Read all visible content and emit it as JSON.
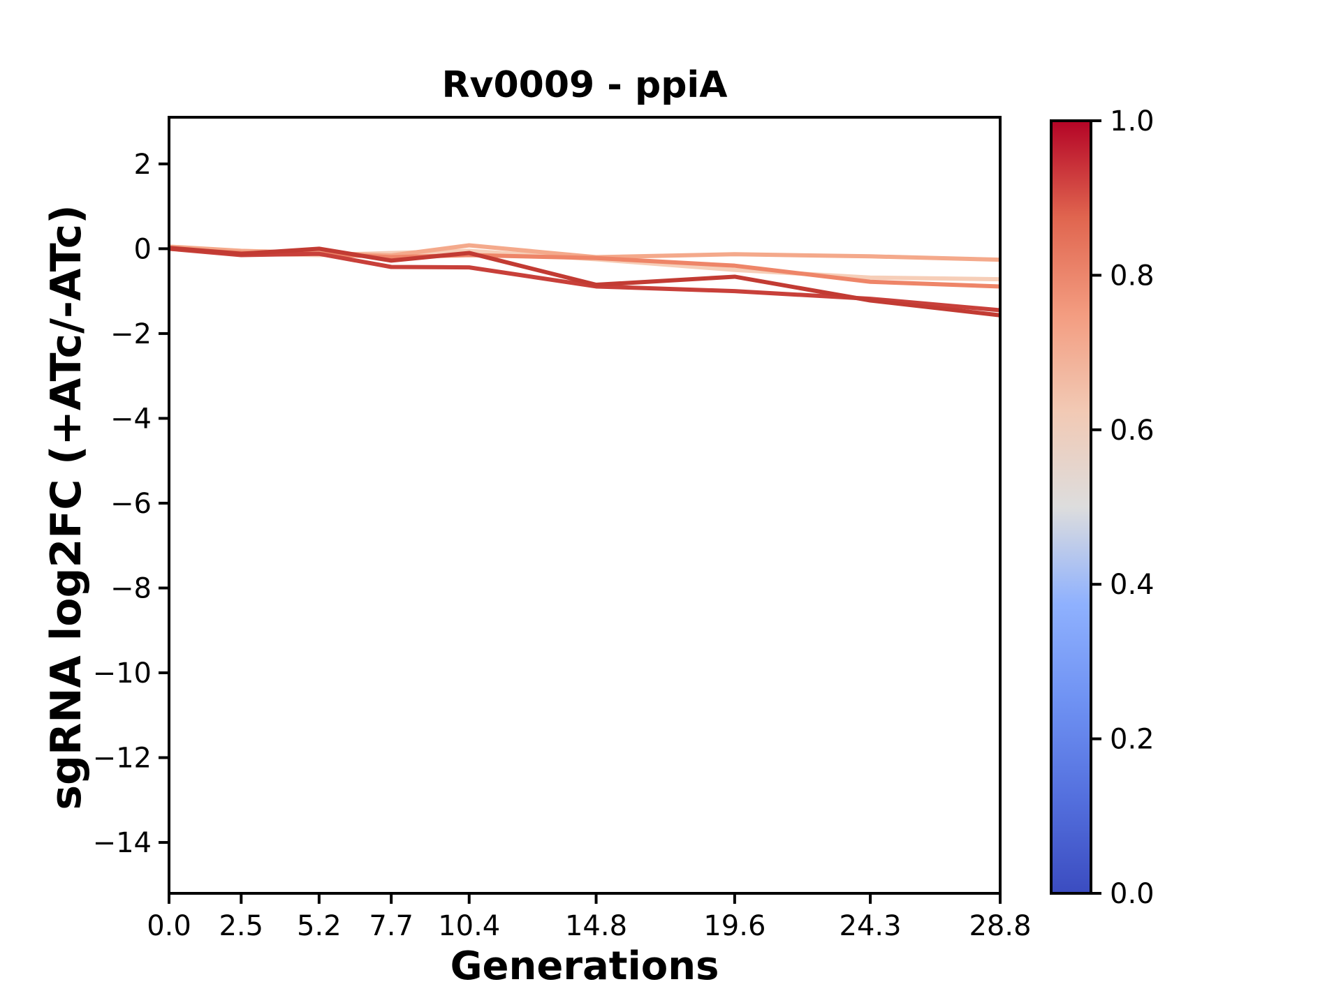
{
  "chart_data": {
    "type": "line",
    "title": "Rv0009 - ppiA",
    "xlabel": "Generations",
    "ylabel": "sgRNA log2FC (+ATc/-ATc)",
    "x": [
      0.0,
      2.5,
      5.2,
      7.7,
      10.4,
      14.8,
      19.6,
      24.3,
      28.8
    ],
    "xtick_labels": [
      "0.0",
      "2.5",
      "5.2",
      "7.7",
      "10.4",
      "14.8",
      "19.6",
      "24.3",
      "28.8"
    ],
    "ytick_values": [
      2,
      0,
      -2,
      -4,
      -6,
      -8,
      -10,
      -12,
      -14
    ],
    "ytick_labels": [
      "2",
      "0",
      "−2",
      "−4",
      "−6",
      "−8",
      "−10",
      "−12",
      "−14"
    ],
    "xlim": [
      0,
      28.8
    ],
    "ylim": [
      -15.2,
      3.1
    ],
    "grid": false,
    "legend": "none (colorbar encodes sgRNA strength 0-1)",
    "series": [
      {
        "name": "sgrna-strength-0.60",
        "color_value": 0.6,
        "color": "#f6ceb8",
        "values": [
          0.0,
          -0.12,
          -0.15,
          -0.1,
          -0.05,
          -0.25,
          -0.5,
          -0.68,
          -0.72
        ]
      },
      {
        "name": "sgrna-strength-0.68",
        "color_value": 0.68,
        "color": "#f4a98b",
        "values": [
          0.05,
          -0.05,
          -0.1,
          -0.16,
          0.08,
          -0.2,
          -0.13,
          -0.18,
          -0.26
        ]
      },
      {
        "name": "sgrna-strength-0.77",
        "color_value": 0.77,
        "color": "#ee8568",
        "values": [
          0.0,
          -0.1,
          -0.12,
          -0.2,
          -0.15,
          -0.22,
          -0.4,
          -0.78,
          -0.89
        ]
      },
      {
        "name": "sgrna-strength-0.90",
        "color_value": 0.9,
        "color": "#c8403a",
        "values": [
          0.0,
          -0.15,
          -0.12,
          -0.43,
          -0.44,
          -0.89,
          -1.0,
          -1.18,
          -1.45
        ]
      },
      {
        "name": "sgrna-strength-0.95",
        "color_value": 0.95,
        "color": "#c23b33",
        "values": [
          0.02,
          -0.12,
          0.0,
          -0.28,
          -0.1,
          -0.85,
          -0.66,
          -1.22,
          -1.57
        ]
      }
    ],
    "colorbar": {
      "cmap": "coolwarm",
      "min": 0.0,
      "max": 1.0,
      "tick_values": [
        1.0,
        0.8,
        0.6,
        0.4,
        0.2,
        0.0
      ],
      "tick_labels": [
        "1.0",
        "0.8",
        "0.6",
        "0.4",
        "0.2",
        "0.0"
      ],
      "gradient_stops": [
        {
          "t": 0.0,
          "color": "#3b4cc0"
        },
        {
          "t": 0.125,
          "color": "#5470de"
        },
        {
          "t": 0.25,
          "color": "#6f92f3"
        },
        {
          "t": 0.375,
          "color": "#8fb1fe"
        },
        {
          "t": 0.5,
          "color": "#dddddd"
        },
        {
          "t": 0.625,
          "color": "#f2c9b4"
        },
        {
          "t": 0.75,
          "color": "#f39c80"
        },
        {
          "t": 0.875,
          "color": "#e0654f"
        },
        {
          "t": 1.0,
          "color": "#b40426"
        }
      ]
    }
  }
}
